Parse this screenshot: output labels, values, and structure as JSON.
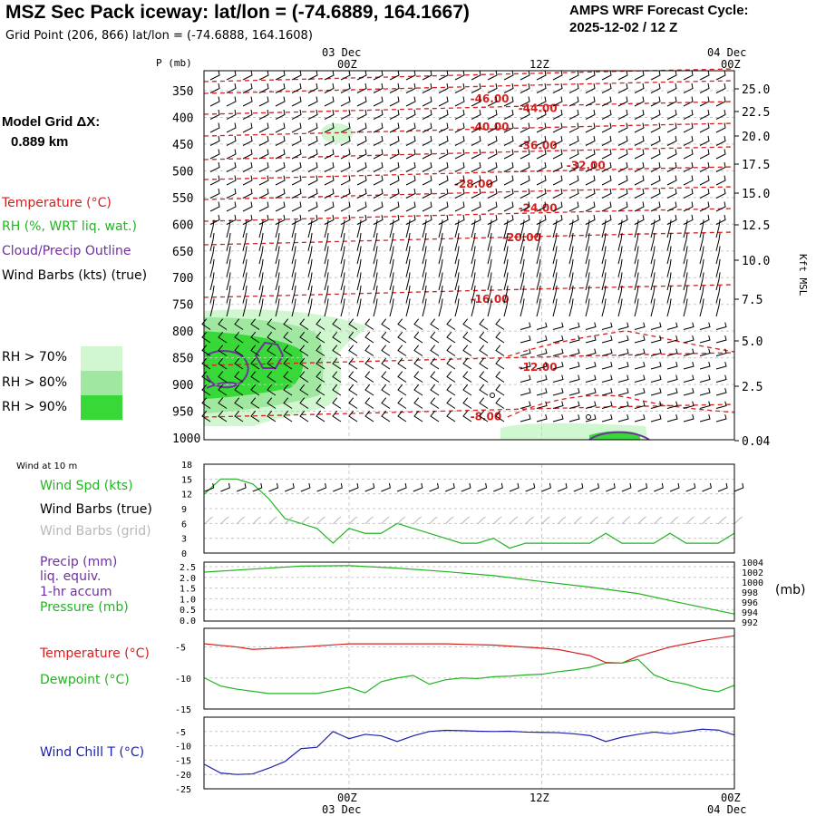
{
  "header": {
    "title": "MSZ Sec Pack iceway:  lat/lon = (-74.6889, 164.1667)",
    "cycle_line1": "AMPS WRF Forecast Cycle:",
    "cycle_line2": "2025-12-02 / 12  Z",
    "grid_point": "Grid Point (206, 866) lat/lon = (-74.6888, 164.1608)"
  },
  "side": {
    "model_grid": "Model Grid ΔX:",
    "model_grid_value": "0.889 km",
    "legend_temperature": "Temperature (°C)",
    "legend_rh": "RH (%, WRT liq. wat.)",
    "legend_cloud": "Cloud/Precip Outline",
    "legend_wind": "Wind Barbs (kts) (true)",
    "rh70": "RH > 70%",
    "rh80": "RH > 80%",
    "rh90": "RH > 90%",
    "wind10m": "Wind at 10 m",
    "wind_spd": "Wind Spd (kts)",
    "wind_true": "Wind Barbs (true)",
    "wind_grid": "Wind Barbs (grid)",
    "precip1": "Precip (mm)",
    "precip2": "liq. equiv.",
    "precip3": "1-hr accum",
    "pressure": "Pressure (mb)",
    "pressure_unit": "(mb)",
    "sfc_temp": "Temperature (°C)",
    "dewpoint": "Dewpoint (°C)",
    "windchill": "Wind Chill T (°C)"
  },
  "colors": {
    "temp": "#d42020",
    "green": "#22b422",
    "purple": "#7030a0",
    "blue": "#1a20b0",
    "rh70": "#d0f7d0",
    "rh80": "#a0e8a0",
    "rh90": "#38d838"
  },
  "chart_data": [
    {
      "type": "contour",
      "name": "sounding cross-section",
      "top_axis": {
        "labels": [
          "03 Dec",
          "00Z",
          "12Z",
          "04 Dec",
          "00Z"
        ]
      },
      "y_title": "P (mb)",
      "pressure_levels": [
        350,
        400,
        450,
        500,
        550,
        600,
        650,
        700,
        750,
        800,
        850,
        900,
        950,
        1000
      ],
      "right_axis_title": "Kft MSL",
      "height_ticks_kft": [
        "25.0",
        "22.5",
        "20.0",
        "17.5",
        "15.0",
        "12.5",
        "10.0",
        "7.5",
        "5.0",
        "2.5",
        "0.04"
      ],
      "temperature_labels": [
        {
          "label": "-46.00",
          "p": 365,
          "hour": 8
        },
        {
          "label": "-44.00",
          "p": 383,
          "hour": 11
        },
        {
          "label": "-40.00",
          "p": 418,
          "hour": 8
        },
        {
          "label": "-36.00",
          "p": 453,
          "hour": 11
        },
        {
          "label": "-32.00",
          "p": 490,
          "hour": 14
        },
        {
          "label": "-28.00",
          "p": 525,
          "hour": 7
        },
        {
          "label": "-24.00",
          "p": 570,
          "hour": 11
        },
        {
          "label": "-20.00",
          "p": 625,
          "hour": 10
        },
        {
          "label": "-16.00",
          "p": 740,
          "hour": 8
        },
        {
          "label": "-12.00",
          "p": 868,
          "hour": 11
        },
        {
          "label": "-8.00",
          "p": 960,
          "hour": 8
        }
      ]
    },
    {
      "type": "line",
      "name": "10 m wind speed",
      "y_ticks": [
        0,
        3,
        6,
        9,
        12,
        15,
        18
      ],
      "ylim": [
        0,
        18
      ],
      "hours": [
        -9,
        -8,
        -7,
        -6,
        -5,
        -4,
        -3,
        -2,
        -1,
        0,
        1,
        2,
        3,
        4,
        5,
        6,
        7,
        8,
        9,
        10,
        11,
        12,
        13,
        14,
        15,
        16,
        17,
        18,
        19,
        20,
        21,
        22,
        23,
        24
      ],
      "wind_speed_kts": [
        12,
        15,
        15,
        14,
        11,
        7,
        6,
        5,
        2,
        5,
        4,
        4,
        6,
        5,
        4,
        3,
        2,
        2,
        3,
        1,
        2,
        2,
        2,
        2,
        2,
        4,
        2,
        2,
        2,
        4,
        2,
        2,
        2,
        4
      ]
    },
    {
      "type": "line",
      "name": "precipitation and pressure",
      "y_ticks_precip": [
        "0.0",
        "0.5",
        "1.0",
        "1.5",
        "2.0",
        "2.5"
      ],
      "y_ticks_pressure": [
        "992",
        "994",
        "996",
        "998",
        "1000",
        "1002",
        "1004"
      ],
      "hours": [
        -9,
        -6,
        -3,
        0,
        3,
        6,
        9,
        12,
        15,
        18,
        21,
        24
      ],
      "precip_mm": [
        0,
        0,
        0,
        0,
        0,
        0,
        0,
        0,
        0,
        0,
        0,
        0
      ],
      "pressure_mb": [
        1002.0,
        1002.6,
        1003.2,
        1003.3,
        1002.8,
        1002.1,
        1001.3,
        1000.1,
        999.0,
        997.7,
        995.6,
        993.6
      ]
    },
    {
      "type": "line",
      "name": "surface temperature and dewpoint",
      "y_ticks": [
        -15,
        -10,
        -5
      ],
      "ylim": [
        -15,
        -2
      ],
      "hours": [
        -9,
        -7,
        -6,
        -3,
        0,
        3,
        6,
        9,
        12,
        13,
        15,
        16,
        17,
        18,
        20,
        22,
        24
      ],
      "temperature_c": [
        -4.5,
        -5.0,
        -5.4,
        -5.0,
        -4.5,
        -4.5,
        -4.5,
        -4.7,
        -5.2,
        -5.4,
        -6.4,
        -7.5,
        -7.6,
        -6.5,
        -5.0,
        -4.0,
        -3.2
      ],
      "hours_dewpoint": [
        -9,
        -8,
        -7,
        -5,
        -2,
        0,
        1,
        2,
        3,
        4,
        5,
        6,
        7,
        8,
        9,
        10,
        11,
        12,
        13,
        14,
        15,
        16,
        17,
        18,
        19,
        20,
        21,
        22,
        23,
        24
      ],
      "dewpoint_c": [
        -10.0,
        -11.3,
        -11.8,
        -12.5,
        -12.5,
        -11.5,
        -12.4,
        -10.6,
        -10.0,
        -9.6,
        -11.0,
        -10.3,
        -10.0,
        -10.1,
        -9.8,
        -9.7,
        -9.5,
        -9.4,
        -9.0,
        -8.7,
        -8.3,
        -7.6,
        -7.6,
        -7.0,
        -9.5,
        -10.5,
        -11.0,
        -11.8,
        -12.2,
        -11.2
      ]
    },
    {
      "type": "line",
      "name": "wind chill",
      "y_ticks": [
        -25,
        -20,
        -15,
        -10,
        -5
      ],
      "ylim": [
        -25,
        0
      ],
      "hours": [
        -9,
        -8,
        -7,
        -6,
        -5,
        -4,
        -3,
        -2,
        -1,
        0,
        1,
        2,
        3,
        4,
        5,
        6,
        7,
        8,
        9,
        10,
        11,
        12,
        13,
        14,
        15,
        16,
        17,
        18,
        19,
        20,
        21,
        22,
        23,
        24
      ],
      "wind_chill_c": [
        -16.5,
        -19.5,
        -20,
        -19.8,
        -17.8,
        -15.5,
        -11,
        -10.5,
        -5,
        -7.5,
        -6,
        -6.5,
        -8.5,
        -6.5,
        -5,
        -4.6,
        -4.7,
        -4.9,
        -5.0,
        -4.9,
        -5.2,
        -5.3,
        -5.4,
        -5.8,
        -6.4,
        -8.5,
        -7,
        -6,
        -5.2,
        -5.8,
        -5.0,
        -4.2,
        -4.5,
        -6.2
      ]
    }
  ],
  "bottom_axis": {
    "labels": [
      "00Z",
      "03 Dec",
      "12Z",
      "00Z",
      "04 Dec"
    ]
  }
}
